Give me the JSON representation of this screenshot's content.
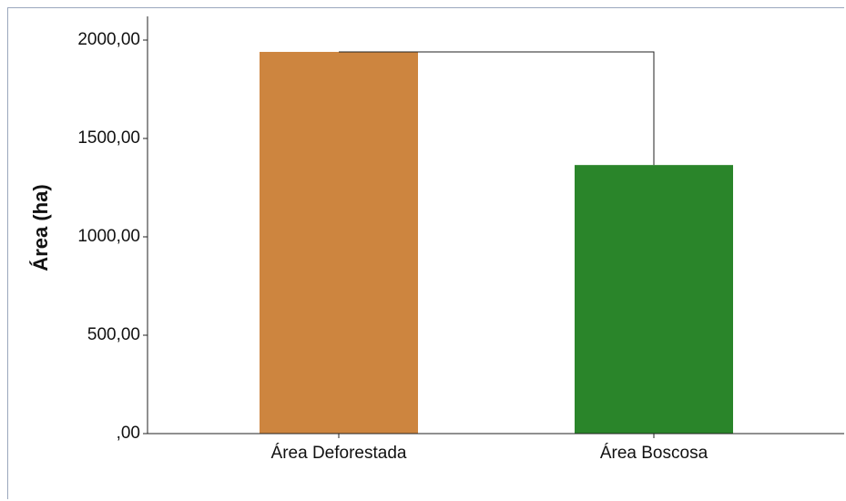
{
  "chart_data": {
    "type": "bar",
    "categories": [
      "Área Deforestada",
      "Área Boscosa"
    ],
    "values": [
      1940,
      1365
    ],
    "colors": [
      "#cd853f",
      "#2a852a"
    ],
    "ylabel": "Área (ha)",
    "xlabel": "",
    "ylim": [
      0,
      2000
    ],
    "yticks": [
      0,
      500,
      1000,
      1500,
      2000
    ],
    "ytick_labels": [
      ",00",
      "500,00",
      "1000,00",
      "1500,00",
      "2000,00"
    ],
    "grid": false,
    "connector": true
  }
}
